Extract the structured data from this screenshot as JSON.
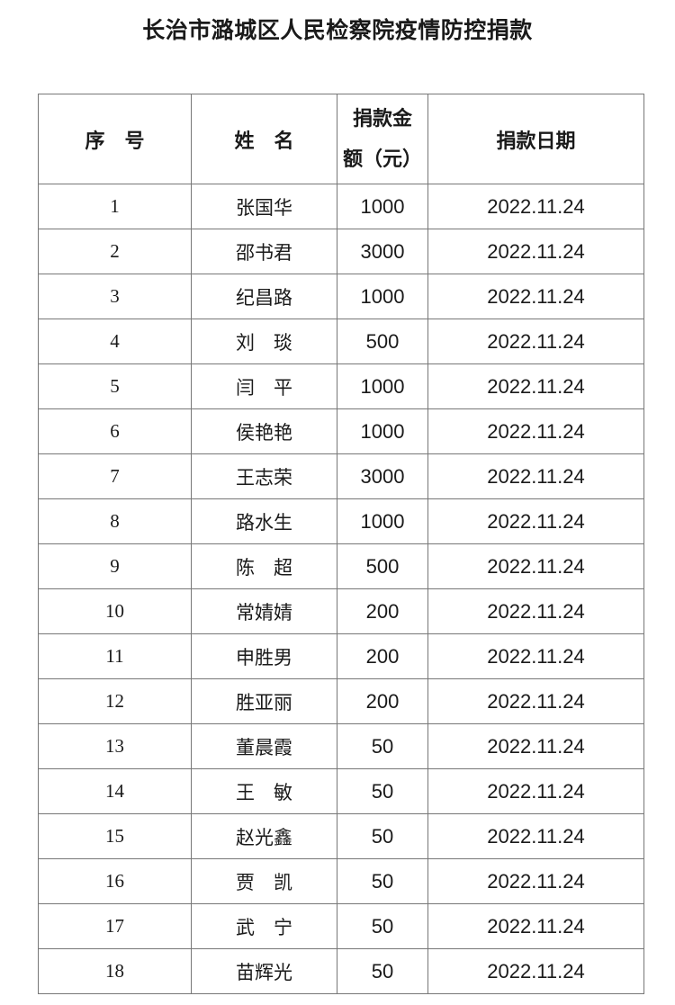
{
  "title": "长治市潞城区人民检察院疫情防控捐款",
  "headers": {
    "index": "序　号",
    "name": "姓　名",
    "amount_line1": "捐款金",
    "amount_line2": "额（元）",
    "date": "捐款日期"
  },
  "rows": [
    {
      "index": "1",
      "name": "张国华",
      "amount": "1000",
      "date": "2022.11.24"
    },
    {
      "index": "2",
      "name": "邵书君",
      "amount": "3000",
      "date": "2022.11.24"
    },
    {
      "index": "3",
      "name": "纪昌路",
      "amount": "1000",
      "date": "2022.11.24"
    },
    {
      "index": "4",
      "name": "刘　琰",
      "amount": "500",
      "date": "2022.11.24"
    },
    {
      "index": "5",
      "name": "闫　平",
      "amount": "1000",
      "date": "2022.11.24"
    },
    {
      "index": "6",
      "name": "侯艳艳",
      "amount": "1000",
      "date": "2022.11.24"
    },
    {
      "index": "7",
      "name": "王志荣",
      "amount": "3000",
      "date": "2022.11.24"
    },
    {
      "index": "8",
      "name": "路水生",
      "amount": "1000",
      "date": "2022.11.24"
    },
    {
      "index": "9",
      "name": "陈　超",
      "amount": "500",
      "date": "2022.11.24"
    },
    {
      "index": "10",
      "name": "常婧婧",
      "amount": "200",
      "date": "2022.11.24"
    },
    {
      "index": "11",
      "name": "申胜男",
      "amount": "200",
      "date": "2022.11.24"
    },
    {
      "index": "12",
      "name": "胜亚丽",
      "amount": "200",
      "date": "2022.11.24"
    },
    {
      "index": "13",
      "name": "董晨霞",
      "amount": "50",
      "date": "2022.11.24"
    },
    {
      "index": "14",
      "name": "王　敏",
      "amount": "50",
      "date": "2022.11.24"
    },
    {
      "index": "15",
      "name": "赵光鑫",
      "amount": "50",
      "date": "2022.11.24"
    },
    {
      "index": "16",
      "name": "贾　凯",
      "amount": "50",
      "date": "2022.11.24"
    },
    {
      "index": "17",
      "name": "武　宁",
      "amount": "50",
      "date": "2022.11.24"
    },
    {
      "index": "18",
      "name": "苗辉光",
      "amount": "50",
      "date": "2022.11.24"
    }
  ]
}
